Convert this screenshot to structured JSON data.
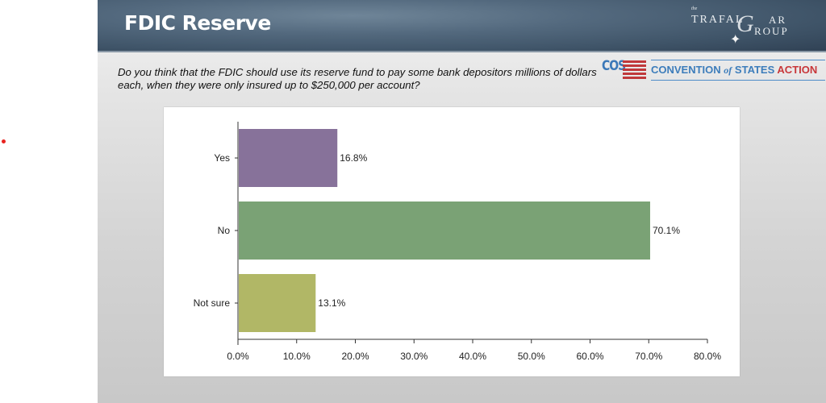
{
  "slide": {
    "title": "FDIC Reserve",
    "question": "Do you think that the FDIC should use its reserve fund to pay some bank depositors millions of dollars each, when they were only insured up to $250,000 per account?",
    "brand": {
      "trafalgar": {
        "the": "the",
        "part1": "TRAFAL",
        "g": "G",
        "part2": "AR",
        "part3": "ROUP"
      },
      "cos": {
        "abbr": "COS",
        "name_a": "CONVENTION",
        "name_of": "of",
        "name_b": "STATES",
        "name_c": "ACTION"
      }
    }
  },
  "colors": {
    "yes": "#87729a",
    "no": "#7aa275",
    "not_sure": "#b1b766",
    "marker_dot": "#e8231f"
  },
  "chart_data": {
    "type": "bar",
    "orientation": "horizontal",
    "title": "",
    "xlabel": "",
    "ylabel": "",
    "categories": [
      "Yes",
      "No",
      "Not sure"
    ],
    "values": [
      16.8,
      70.1,
      13.1
    ],
    "value_labels": [
      "16.8%",
      "70.1%",
      "13.1%"
    ],
    "xlim": [
      0,
      80
    ],
    "xticks": [
      0,
      10,
      20,
      30,
      40,
      50,
      60,
      70,
      80
    ],
    "xtick_labels": [
      "0.0%",
      "10.0%",
      "20.0%",
      "30.0%",
      "40.0%",
      "50.0%",
      "60.0%",
      "70.0%",
      "80.0%"
    ],
    "grid": false,
    "legend": "none"
  }
}
